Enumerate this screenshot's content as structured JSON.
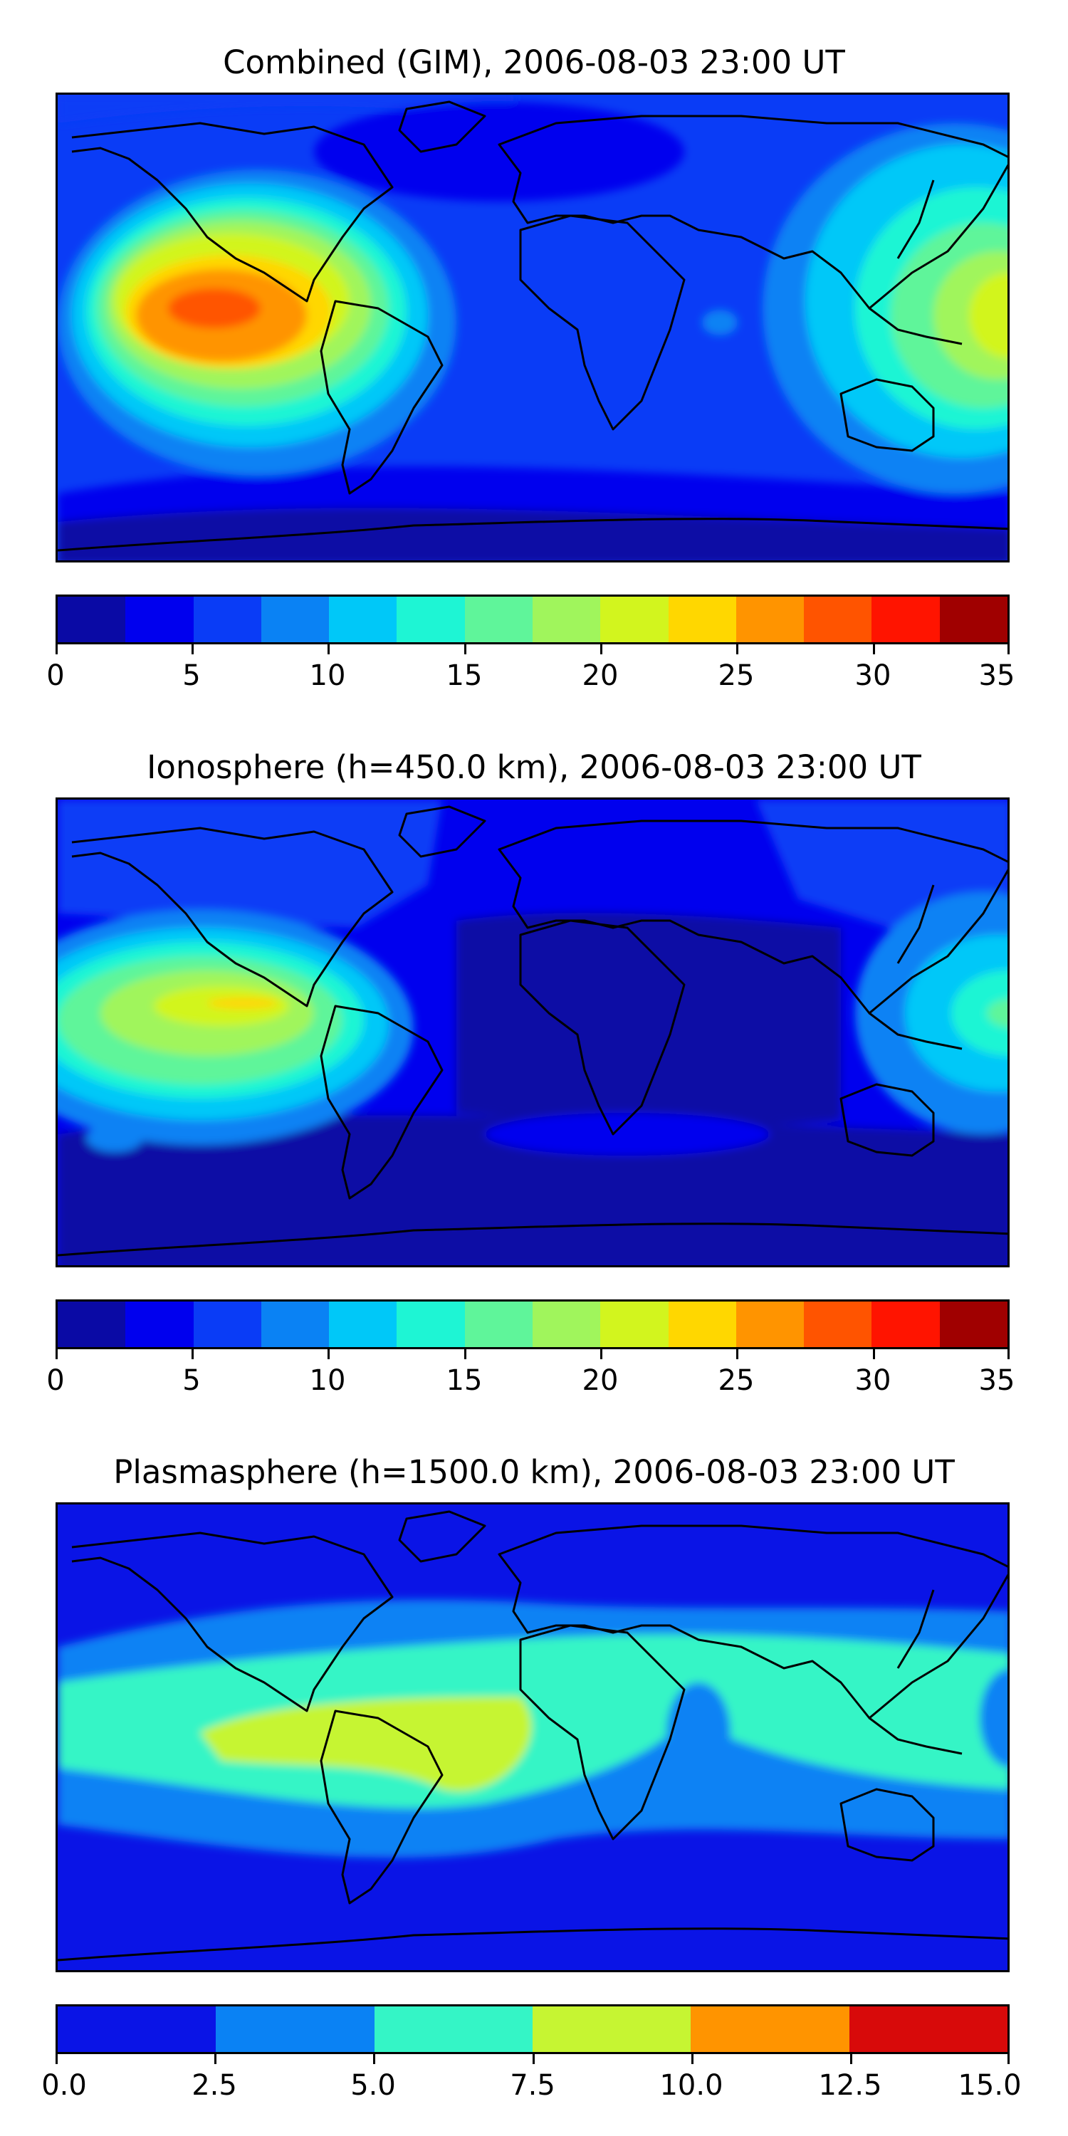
{
  "panels": [
    {
      "title": "Combined (GIM), 2006-08-03 23:00 UT",
      "colorbar": {
        "ticks": [
          "0",
          "5",
          "10",
          "15",
          "20",
          "25",
          "30",
          "35"
        ],
        "colors": [
          "#0a0aa5",
          "#0000ee",
          "#0a3cf6",
          "#0a82f4",
          "#00c8f8",
          "#1ef5d4",
          "#5ff59a",
          "#a0f55c",
          "#d2f51e",
          "#ffd700",
          "#ff9400",
          "#ff5400",
          "#ff1400",
          "#a00000"
        ]
      }
    },
    {
      "title": "Ionosphere  (h=450.0 km), 2006-08-03 23:00 UT",
      "colorbar": {
        "ticks": [
          "0",
          "5",
          "10",
          "15",
          "20",
          "25",
          "30",
          "35"
        ],
        "colors": [
          "#0a0aa5",
          "#0000ee",
          "#0a3cf6",
          "#0a82f4",
          "#00c8f8",
          "#1ef5d4",
          "#5ff59a",
          "#a0f55c",
          "#d2f51e",
          "#ffd700",
          "#ff9400",
          "#ff5400",
          "#ff1400",
          "#a00000"
        ]
      }
    },
    {
      "title": "Plasmasphere (h=1500.0 km), 2006-08-03 23:00 UT",
      "colorbar": {
        "ticks": [
          "0.0",
          "2.5",
          "5.0",
          "7.5",
          "10.0",
          "12.5",
          "15.0"
        ],
        "colors": [
          "#0a14e6",
          "#0a82f4",
          "#34f5c6",
          "#c6f532",
          "#ff9400",
          "#d80a0a"
        ]
      }
    }
  ]
}
